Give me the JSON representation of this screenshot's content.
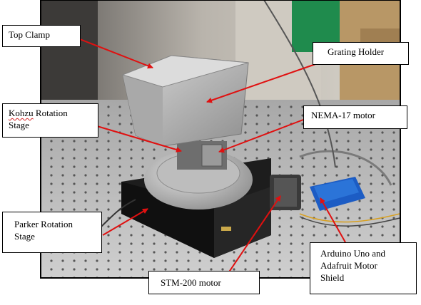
{
  "labels": {
    "top_clamp": "Top Clamp",
    "grating_holder": "Grating Holder",
    "kohzu_word": "Kohzu",
    "kohzu_rest": " Rotation",
    "kohzu_line2": "Stage",
    "nema_motor": "NEMA-17 motor",
    "parker_line1": "Parker Rotation",
    "parker_line2": "Stage",
    "stm_motor": "STM-200 motor",
    "arduino_line1": "Arduino Uno and",
    "arduino_line2": "Adafruit Motor",
    "arduino_line3": "Shield"
  },
  "colors": {
    "arrow": "#e01010",
    "callout_border": "#000000",
    "spellcheck_underline": "#d62020"
  }
}
